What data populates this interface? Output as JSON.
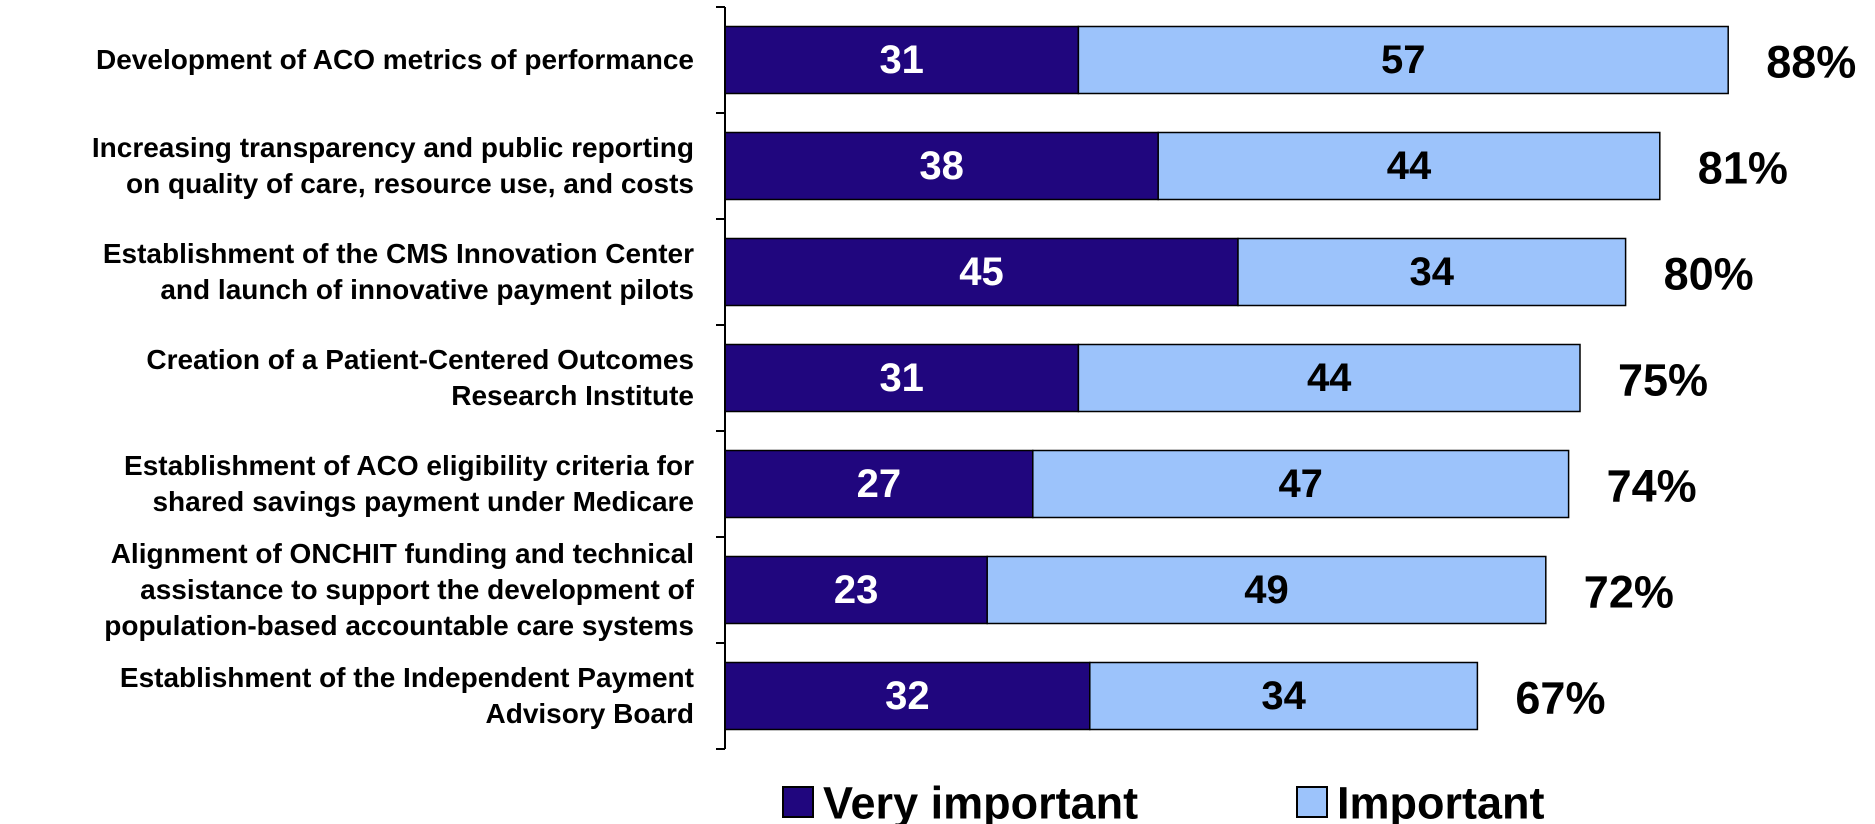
{
  "chart_data": {
    "type": "stacked-bar-horizontal",
    "categories": [
      "Development of ACO metrics of performance",
      "Increasing transparency and public reporting\non quality of care, resource use, and costs",
      "Establishment of the CMS Innovation Center\nand launch of innovative payment pilots",
      "Creation of a Patient-Centered Outcomes\nResearch Institute",
      "Establishment of ACO eligibility criteria for\nshared savings payment under Medicare",
      "Alignment of ONCHIT funding and technical\nassistance to support the development of\npopulation-based accountable care systems",
      "Establishment of the Independent Payment\nAdvisory Board"
    ],
    "series": [
      {
        "name": "Very important",
        "color": "#20067e",
        "values": [
          31,
          38,
          45,
          31,
          27,
          23,
          32
        ]
      },
      {
        "name": "Important",
        "color": "#9cc3fb",
        "values": [
          57,
          44,
          34,
          44,
          47,
          49,
          34
        ]
      }
    ],
    "totals": {
      "values": [
        88,
        81,
        80,
        75,
        74,
        72,
        67
      ],
      "value_labels": [
        "88%",
        "81%",
        "80%",
        "75%",
        "74%",
        "72%",
        "67%"
      ]
    },
    "xlim": [
      0,
      100
    ],
    "legend": "bottom"
  }
}
